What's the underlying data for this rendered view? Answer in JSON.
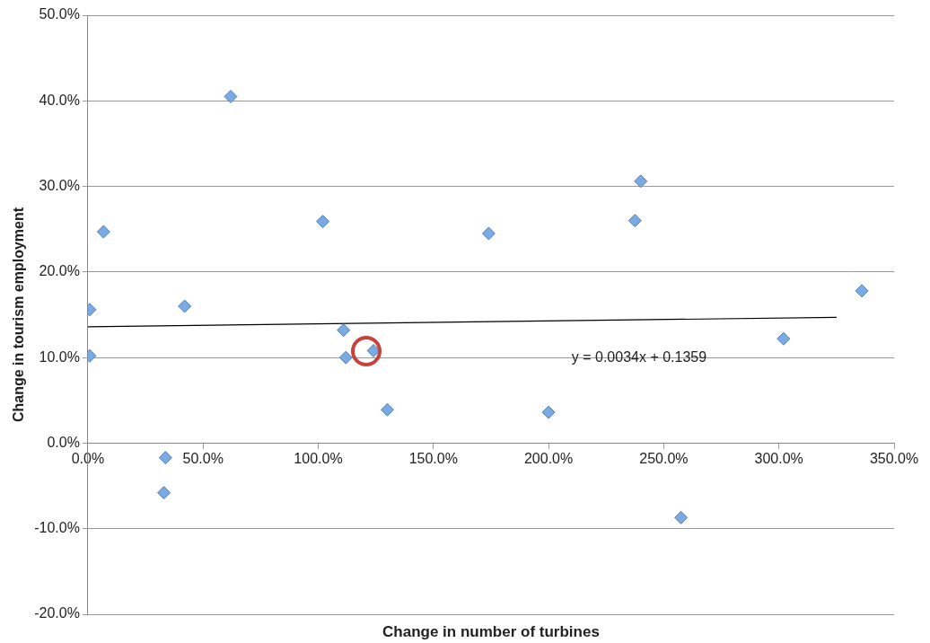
{
  "chart_data": {
    "type": "scatter",
    "xlabel": "Change in number of turbines",
    "ylabel": "Change in tourism employment",
    "x": [
      0.8,
      0.8,
      6.8,
      33,
      33.7,
      42,
      62,
      102,
      111,
      112,
      124,
      130,
      174,
      200,
      237.5,
      240,
      257.5,
      302,
      336
    ],
    "series": [
      {
        "color": "#7aaae3",
        "marker": "diamond",
        "values": [
          10.2,
          15.6,
          24.7,
          -5.8,
          -1.7,
          16.0,
          40.5,
          25.9,
          13.2,
          10.0,
          10.8,
          3.9,
          24.5,
          3.6,
          26.0,
          30.6,
          -8.7,
          12.2,
          17.8
        ]
      },
      {
        "type": "line",
        "color": "#000000",
        "x": [
          0,
          325
        ],
        "values": [
          13.6,
          14.7
        ]
      }
    ],
    "annotations": [
      "y = 0.0034x + 0.1359"
    ],
    "xlim": [
      0,
      350
    ],
    "xticks": [
      {
        "value": 0,
        "label": "0.0%"
      },
      {
        "value": 50,
        "label": "50.0%"
      },
      {
        "value": 100,
        "label": "100.0%"
      },
      {
        "value": 150,
        "label": "150.0%"
      },
      {
        "value": 200,
        "label": "200.0%"
      },
      {
        "value": 250,
        "label": "250.0%"
      },
      {
        "value": 300,
        "label": "300.0%"
      },
      {
        "value": 350,
        "label": "350.0%"
      }
    ],
    "ylim": [
      -20,
      50
    ],
    "yticks": [
      {
        "value": -20,
        "label": "-20.0%"
      },
      {
        "value": -10,
        "label": "-10.0%"
      },
      {
        "value": 0,
        "label": "0.0%"
      },
      {
        "value": 10,
        "label": "10.0%"
      },
      {
        "value": 20,
        "label": "20.0%"
      },
      {
        "value": 30,
        "label": "30.0%"
      },
      {
        "value": 40,
        "label": "40.0%"
      },
      {
        "value": 50,
        "label": "50.0%"
      }
    ],
    "grid": "y",
    "legend": false
  }
}
